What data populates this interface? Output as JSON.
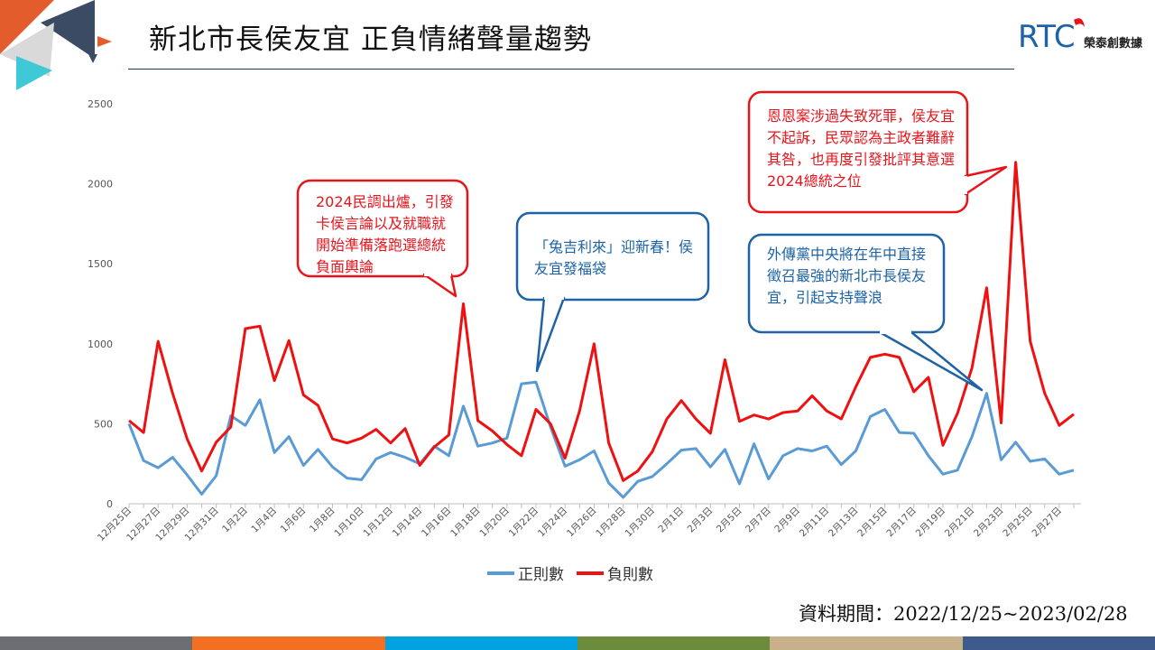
{
  "title": "新北市長侯友宜 正負情緒聲量趨勢",
  "logo": {
    "mark": "RTC",
    "name": "榮泰創數據"
  },
  "period": "資料期間：2022/12/25~2023/02/28",
  "annotations": [
    {
      "id": "a1",
      "text": "2024民調出爐，引發卡侯言論以及就職就開始準備落跑選總統負面輿論"
    },
    {
      "id": "a2",
      "text": "「兔吉利來」迎新春！侯友宜發福袋"
    },
    {
      "id": "a3",
      "text": "恩恩案涉過失致死罪，侯友宜不起訴，民眾認為主政者難辭其咎，也再度引發批評其意選2024總統之位"
    },
    {
      "id": "a4",
      "text": "外傳黨中央將在年中直接徵召最強的新北市長侯友宜，引起支持聲浪"
    }
  ],
  "colors": {
    "positive": "#5b9bd5",
    "negative": "#ee1111",
    "callout_red_border": "#e8141c",
    "callout_blue_border": "#1d63a6",
    "title_rule": "#1f3a60"
  },
  "bottom_bar_colors": [
    "#6d6e71",
    "#f36f21",
    "#00a3e0",
    "#6c8b3c",
    "#c8b08a",
    "#3c5a8a"
  ],
  "chart_data": {
    "type": "line",
    "title": "",
    "xlabel": "",
    "ylabel": "",
    "ylim": [
      0,
      2500
    ],
    "yticks": [
      0,
      500,
      1000,
      1500,
      2000,
      2500
    ],
    "grid": false,
    "legend": "bottom",
    "x_tick_labels": [
      "12月25日",
      "12月27日",
      "12月29日",
      "12月31日",
      "1月2日",
      "1月4日",
      "1月6日",
      "1月8日",
      "1月10日",
      "1月12日",
      "1月14日",
      "1月16日",
      "1月18日",
      "1月20日",
      "1月22日",
      "1月24日",
      "1月26日",
      "1月28日",
      "1月30日",
      "2月1日",
      "2月3日",
      "2月5日",
      "2月7日",
      "2月9日",
      "2月11日",
      "2月13日",
      "2月15日",
      "2月17日",
      "2月19日",
      "2月21日",
      "2月23日",
      "2月25日",
      "2月27日"
    ],
    "x": [
      "2022-12-25",
      "2022-12-26",
      "2022-12-27",
      "2022-12-28",
      "2022-12-29",
      "2022-12-30",
      "2022-12-31",
      "2023-01-01",
      "2023-01-02",
      "2023-01-03",
      "2023-01-04",
      "2023-01-05",
      "2023-01-06",
      "2023-01-07",
      "2023-01-08",
      "2023-01-09",
      "2023-01-10",
      "2023-01-11",
      "2023-01-12",
      "2023-01-13",
      "2023-01-14",
      "2023-01-15",
      "2023-01-16",
      "2023-01-17",
      "2023-01-18",
      "2023-01-19",
      "2023-01-20",
      "2023-01-21",
      "2023-01-22",
      "2023-01-23",
      "2023-01-24",
      "2023-01-25",
      "2023-01-26",
      "2023-01-27",
      "2023-01-28",
      "2023-01-29",
      "2023-01-30",
      "2023-01-31",
      "2023-02-01",
      "2023-02-02",
      "2023-02-03",
      "2023-02-04",
      "2023-02-05",
      "2023-02-06",
      "2023-02-07",
      "2023-02-08",
      "2023-02-09",
      "2023-02-10",
      "2023-02-11",
      "2023-02-12",
      "2023-02-13",
      "2023-02-14",
      "2023-02-15",
      "2023-02-16",
      "2023-02-17",
      "2023-02-18",
      "2023-02-19",
      "2023-02-20",
      "2023-02-21",
      "2023-02-22",
      "2023-02-23",
      "2023-02-24",
      "2023-02-25",
      "2023-02-26",
      "2023-02-27",
      "2023-02-28"
    ],
    "series": [
      {
        "name": "正則數",
        "color": "#5b9bd5",
        "values": [
          500,
          270,
          225,
          290,
          180,
          60,
          175,
          550,
          490,
          650,
          320,
          420,
          240,
          340,
          230,
          160,
          150,
          280,
          320,
          290,
          250,
          360,
          300,
          610,
          360,
          380,
          410,
          750,
          760,
          480,
          235,
          275,
          330,
          130,
          40,
          140,
          170,
          250,
          335,
          345,
          230,
          340,
          125,
          375,
          155,
          300,
          345,
          330,
          360,
          245,
          330,
          545,
          590,
          445,
          440,
          300,
          185,
          210,
          420,
          690,
          275,
          385,
          265,
          280,
          185,
          210
        ]
      },
      {
        "name": "負則數",
        "color": "#ee1111",
        "values": [
          520,
          445,
          1015,
          690,
          405,
          205,
          385,
          480,
          1095,
          1110,
          770,
          1020,
          680,
          615,
          405,
          380,
          410,
          465,
          380,
          470,
          240,
          355,
          430,
          1250,
          520,
          455,
          370,
          300,
          590,
          500,
          285,
          580,
          1000,
          380,
          145,
          205,
          325,
          530,
          645,
          530,
          440,
          900,
          515,
          555,
          530,
          570,
          580,
          675,
          580,
          530,
          730,
          915,
          935,
          915,
          700,
          790,
          365,
          565,
          850,
          1350,
          505,
          2135,
          1015,
          690,
          490,
          560
        ]
      }
    ]
  }
}
